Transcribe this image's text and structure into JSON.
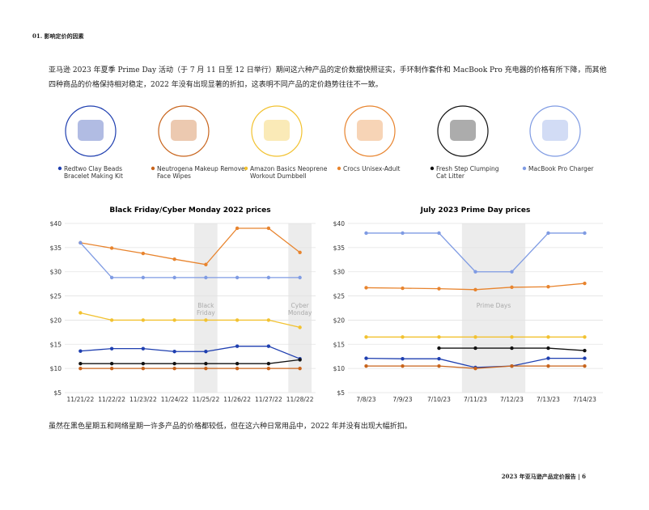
{
  "header": {
    "title": "01. 影响定价的因素"
  },
  "intro": "亚马逊 2023 年夏季 Prime Day 活动（于 7 月 11 日至 12 日举行）期间这六种产品的定价数据快照证实，手环制作套件和 MacBook Pro 充电器的价格有所下降，而其他四种商品的价格保持相对稳定，2022 年没有出现显著的折扣，这表明不同产品的定价趋势往往不一致。",
  "products": [
    {
      "name": "Redtwo Clay Beads Bracelet Making Kit",
      "color": "#1f3fb0"
    },
    {
      "name": "Neutrogena Makeup Remover Face Wipes",
      "color": "#c8641c"
    },
    {
      "name": "Amazon Basics Neoprene Workout Dumbbell",
      "color": "#f2c230"
    },
    {
      "name": "Crocs Unisex-Adult",
      "color": "#e8842e"
    },
    {
      "name": "Fresh Step Clumping Cat Litter",
      "color": "#111111"
    },
    {
      "name": "MacBook Pro Charger",
      "color": "#7f9be3"
    }
  ],
  "chart_data": [
    {
      "type": "line",
      "title": "Black Friday/Cyber Monday 2022 prices",
      "categories": [
        "11/21/22",
        "11/22/22",
        "11/23/22",
        "11/24/22",
        "11/25/22",
        "11/26/22",
        "11/27/22",
        "11/28/22"
      ],
      "annotations": [
        "Black Friday",
        "Cyber Monday"
      ],
      "ylim": [
        5,
        40
      ],
      "yticks": [
        {
          "value": 5,
          "label": "$5"
        },
        {
          "value": 10,
          "label": "$10"
        },
        {
          "value": 15,
          "label": "$15"
        },
        {
          "value": 20,
          "label": "$20"
        },
        {
          "value": 25,
          "label": "$25"
        },
        {
          "value": 30,
          "label": "$30"
        },
        {
          "value": 35,
          "label": "$35"
        },
        {
          "value": 40,
          "label": "$40"
        }
      ],
      "grid": true,
      "series": [
        {
          "color": "#1f3fb0",
          "values": [
            13.6,
            14.1,
            14.1,
            13.5,
            13.5,
            14.6,
            14.6,
            12
          ]
        },
        {
          "color": "#c8641c",
          "values": [
            10,
            10,
            10,
            10,
            10,
            10,
            10,
            10
          ]
        },
        {
          "color": "#f2c230",
          "values": [
            21.5,
            20,
            20,
            20,
            20,
            20,
            20,
            18.5
          ]
        },
        {
          "color": "#e8842e",
          "values": [
            36,
            34.9,
            33.8,
            32.6,
            31.5,
            39,
            39,
            34
          ]
        },
        {
          "color": "#111111",
          "values": [
            11,
            11,
            11,
            11,
            11,
            11,
            11,
            11.8
          ]
        },
        {
          "color": "#7f9be3",
          "values": [
            36,
            28.8,
            28.8,
            28.8,
            28.8,
            28.8,
            28.8,
            28.8
          ]
        }
      ]
    },
    {
      "type": "line",
      "title": "July 2023 Prime Day prices",
      "categories": [
        "7/8/23",
        "7/9/23",
        "7/10/23",
        "7/11/23",
        "7/12/23",
        "7/13/23",
        "7/14/23"
      ],
      "annotations": [
        "Prime Days"
      ],
      "ylim": [
        5,
        40
      ],
      "yticks": [
        {
          "value": 5,
          "label": "$5"
        },
        {
          "value": 10,
          "label": "$10"
        },
        {
          "value": 15,
          "label": "$15"
        },
        {
          "value": 20,
          "label": "$20"
        },
        {
          "value": 25,
          "label": "$25"
        },
        {
          "value": 30,
          "label": "$30"
        },
        {
          "value": 35,
          "label": "$35"
        },
        {
          "value": 40,
          "label": "$40"
        }
      ],
      "grid": true,
      "series": [
        {
          "color": "#1f3fb0",
          "values": [
            12.1,
            12,
            12,
            10.2,
            10.5,
            12.1,
            12.1
          ]
        },
        {
          "color": "#c8641c",
          "values": [
            10.5,
            10.5,
            10.5,
            10,
            10.5,
            10.5,
            10.5
          ]
        },
        {
          "color": "#f2c230",
          "values": [
            16.5,
            16.5,
            16.5,
            16.5,
            16.5,
            16.5,
            16.5
          ]
        },
        {
          "color": "#e8842e",
          "values": [
            26.7,
            26.6,
            26.5,
            26.3,
            26.8,
            26.9,
            27.6
          ]
        },
        {
          "color": "#111111",
          "values": [
            null,
            null,
            14.2,
            14.2,
            14.2,
            14.2,
            13.7
          ]
        },
        {
          "color": "#7f9be3",
          "values": [
            38,
            38,
            38,
            30,
            30,
            38,
            38
          ]
        }
      ]
    }
  ],
  "conclusion": "虽然在黑色星期五和网络星期一许多产品的价格都较低，但在这六种日常用品中，2022 年并没有出现大幅折扣。",
  "footer": {
    "report": "2023 年亚马逊产品定价报告",
    "page": "6"
  }
}
